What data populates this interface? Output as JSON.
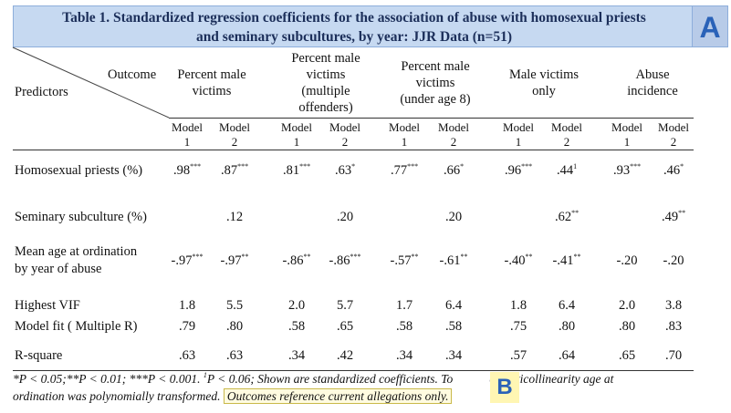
{
  "title": {
    "line1": "Table 1. Standardized regression coefficients for the association of abuse with homosexual priests",
    "line2": "and seminary subcultures, by year: JJR Data (n=51)",
    "badge": "A"
  },
  "header": {
    "outcome_label": "Outcome",
    "predictors_label": "Predictors",
    "columns": [
      {
        "lines": [
          "Percent male",
          "victims"
        ]
      },
      {
        "lines": [
          "Percent male",
          "victims",
          "(multiple",
          "offenders)"
        ]
      },
      {
        "lines": [
          "Percent male",
          "victims",
          "(under age 8)"
        ]
      },
      {
        "lines": [
          "Male victims",
          "only"
        ]
      },
      {
        "lines": [
          "Abuse",
          "incidence"
        ]
      }
    ],
    "model_word": "Model",
    "model_nums": [
      "1",
      "2"
    ]
  },
  "rows": [
    {
      "label": [
        "Homosexual priests (%)"
      ],
      "cells": [
        [
          ".98",
          "***"
        ],
        [
          ".87",
          "***"
        ],
        [
          ".81",
          "***"
        ],
        [
          ".63",
          "*"
        ],
        [
          ".77",
          "***"
        ],
        [
          ".66",
          "*"
        ],
        [
          ".96",
          "***"
        ],
        [
          ".44",
          "1"
        ],
        [
          ".93",
          "***"
        ],
        [
          ".46",
          "*"
        ]
      ]
    },
    {
      "label": [
        "Seminary subculture (%)"
      ],
      "cells": [
        [
          "",
          ""
        ],
        [
          ".12",
          ""
        ],
        [
          "",
          ""
        ],
        [
          ".20",
          ""
        ],
        [
          "",
          ""
        ],
        [
          ".20",
          ""
        ],
        [
          "",
          ""
        ],
        [
          ".62",
          "**"
        ],
        [
          "",
          ""
        ],
        [
          ".49",
          "**"
        ]
      ]
    },
    {
      "label": [
        "Mean age at ordination",
        "by year of abuse"
      ],
      "cells": [
        [
          "-.97",
          "***"
        ],
        [
          "-.97",
          "**"
        ],
        [
          "-.86",
          "**"
        ],
        [
          "-.86",
          "***"
        ],
        [
          "-.57",
          "**"
        ],
        [
          "-.61",
          "**"
        ],
        [
          "-.40",
          "**"
        ],
        [
          "-.41",
          "**"
        ],
        [
          "-.20",
          ""
        ],
        [
          "-.20",
          ""
        ]
      ]
    },
    {
      "label": [
        "Highest VIF"
      ],
      "cells": [
        [
          "1.8",
          ""
        ],
        [
          "5.5",
          ""
        ],
        [
          "2.0",
          ""
        ],
        [
          "5.7",
          ""
        ],
        [
          "1.7",
          ""
        ],
        [
          "6.4",
          ""
        ],
        [
          "1.8",
          ""
        ],
        [
          "6.4",
          ""
        ],
        [
          "2.0",
          ""
        ],
        [
          "3.8",
          ""
        ]
      ]
    },
    {
      "label": [
        "Model fit ( Multiple R)"
      ],
      "cells": [
        [
          ".79",
          ""
        ],
        [
          ".80",
          ""
        ],
        [
          ".58",
          ""
        ],
        [
          ".65",
          ""
        ],
        [
          ".58",
          ""
        ],
        [
          ".58",
          ""
        ],
        [
          ".75",
          ""
        ],
        [
          ".80",
          ""
        ],
        [
          ".80",
          ""
        ],
        [
          ".83",
          ""
        ]
      ]
    },
    {
      "label": [
        "R-square"
      ],
      "cells": [
        [
          ".63",
          ""
        ],
        [
          ".63",
          ""
        ],
        [
          ".34",
          ""
        ],
        [
          ".42",
          ""
        ],
        [
          ".34",
          ""
        ],
        [
          ".34",
          ""
        ],
        [
          ".57",
          ""
        ],
        [
          ".64",
          ""
        ],
        [
          ".65",
          ""
        ],
        [
          ".70",
          ""
        ]
      ]
    }
  ],
  "footnote": {
    "line1_sig": "*P < 0.05;**P < 0.01; ***P < 0.001. ",
    "line1_rest": "P < 0.06;  Shown are standardized coefficients.  To",
    "line1_sup": "1",
    "line1_tail": "e multicollinearity age at",
    "line2": "ordination was polynomially transformed.",
    "highlight": "Outcomes reference current allegations only.",
    "badge": "B"
  }
}
